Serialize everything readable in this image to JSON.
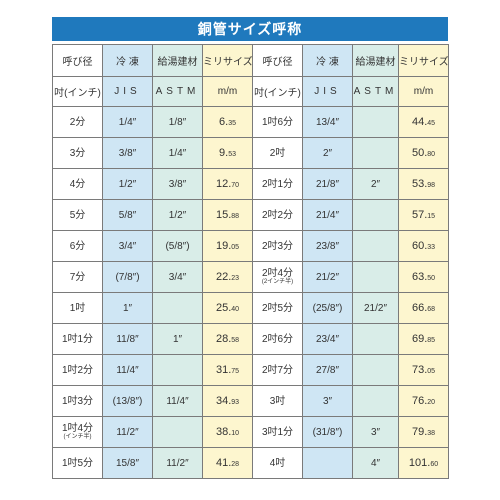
{
  "title": "銅管サイズ呼称",
  "header": {
    "col1": "呼び径",
    "col2": "冷 凍",
    "col3": "給湯建材",
    "col4": "ミリサイズ",
    "col5": "呼び径",
    "col6": "冷 凍",
    "col7": "給湯建材",
    "col8": "ミリサイズ"
  },
  "subheader": {
    "col1": "吋(インチ)",
    "col2": "JIS",
    "col3": "ASTM",
    "col4": "m/m",
    "col5": "吋(インチ)",
    "col6": "JIS",
    "col7": "ASTM",
    "col8": "m/m"
  },
  "rows": [
    {
      "l_name": "2分",
      "l_name_sub": "",
      "l_jis": "1/4″",
      "l_astm": "1/8″",
      "l_mm_int": "6.",
      "l_mm_dec": "35",
      "r_name": "1吋6分",
      "r_name_sub": "",
      "r_jis": "13/4″",
      "r_astm": "",
      "r_mm_int": "44.",
      "r_mm_dec": "45"
    },
    {
      "l_name": "3分",
      "l_name_sub": "",
      "l_jis": "3/8″",
      "l_astm": "1/4″",
      "l_mm_int": "9.",
      "l_mm_dec": "53",
      "r_name": "2吋",
      "r_name_sub": "",
      "r_jis": "2″",
      "r_astm": "",
      "r_mm_int": "50.",
      "r_mm_dec": "80"
    },
    {
      "l_name": "4分",
      "l_name_sub": "",
      "l_jis": "1/2″",
      "l_astm": "3/8″",
      "l_mm_int": "12.",
      "l_mm_dec": "70",
      "r_name": "2吋1分",
      "r_name_sub": "",
      "r_jis": "21/8″",
      "r_astm": "2″",
      "r_mm_int": "53.",
      "r_mm_dec": "98"
    },
    {
      "l_name": "5分",
      "l_name_sub": "",
      "l_jis": "5/8″",
      "l_astm": "1/2″",
      "l_mm_int": "15.",
      "l_mm_dec": "88",
      "r_name": "2吋2分",
      "r_name_sub": "",
      "r_jis": "21/4″",
      "r_astm": "",
      "r_mm_int": "57.",
      "r_mm_dec": "15"
    },
    {
      "l_name": "6分",
      "l_name_sub": "",
      "l_jis": "3/4″",
      "l_astm": "(5/8″)",
      "l_mm_int": "19.",
      "l_mm_dec": "05",
      "r_name": "2吋3分",
      "r_name_sub": "",
      "r_jis": "23/8″",
      "r_astm": "",
      "r_mm_int": "60.",
      "r_mm_dec": "33"
    },
    {
      "l_name": "7分",
      "l_name_sub": "",
      "l_jis": "(7/8″)",
      "l_astm": "3/4″",
      "l_mm_int": "22.",
      "l_mm_dec": "23",
      "r_name": "2吋4分",
      "r_name_sub": "(2インチ半)",
      "r_jis": "21/2″",
      "r_astm": "",
      "r_mm_int": "63.",
      "r_mm_dec": "50"
    },
    {
      "l_name": "1吋",
      "l_name_sub": "",
      "l_jis": "1″",
      "l_astm": "",
      "l_mm_int": "25.",
      "l_mm_dec": "40",
      "r_name": "2吋5分",
      "r_name_sub": "",
      "r_jis": "(25/8″)",
      "r_astm": "21/2″",
      "r_mm_int": "66.",
      "r_mm_dec": "68"
    },
    {
      "l_name": "1吋1分",
      "l_name_sub": "",
      "l_jis": "11/8″",
      "l_astm": "1″",
      "l_mm_int": "28.",
      "l_mm_dec": "58",
      "r_name": "2吋6分",
      "r_name_sub": "",
      "r_jis": "23/4″",
      "r_astm": "",
      "r_mm_int": "69.",
      "r_mm_dec": "85"
    },
    {
      "l_name": "1吋2分",
      "l_name_sub": "",
      "l_jis": "11/4″",
      "l_astm": "",
      "l_mm_int": "31.",
      "l_mm_dec": "75",
      "r_name": "2吋7分",
      "r_name_sub": "",
      "r_jis": "27/8″",
      "r_astm": "",
      "r_mm_int": "73.",
      "r_mm_dec": "05"
    },
    {
      "l_name": "1吋3分",
      "l_name_sub": "",
      "l_jis": "(13/8″)",
      "l_astm": "11/4″",
      "l_mm_int": "34.",
      "l_mm_dec": "93",
      "r_name": "3吋",
      "r_name_sub": "",
      "r_jis": "3″",
      "r_astm": "",
      "r_mm_int": "76.",
      "r_mm_dec": "20"
    },
    {
      "l_name": "1吋4分",
      "l_name_sub": "(インチ半)",
      "l_jis": "11/2″",
      "l_astm": "",
      "l_mm_int": "38.",
      "l_mm_dec": "10",
      "r_name": "3吋1分",
      "r_name_sub": "",
      "r_jis": "(31/8″)",
      "r_astm": "3″",
      "r_mm_int": "79.",
      "r_mm_dec": "38"
    },
    {
      "l_name": "1吋5分",
      "l_name_sub": "",
      "l_jis": "15/8″",
      "l_astm": "11/2″",
      "l_mm_int": "41.",
      "l_mm_dec": "28",
      "r_name": "4吋",
      "r_name_sub": "",
      "r_jis": "",
      "r_astm": "4″",
      "r_mm_int": "101.",
      "r_mm_dec": "60"
    }
  ]
}
